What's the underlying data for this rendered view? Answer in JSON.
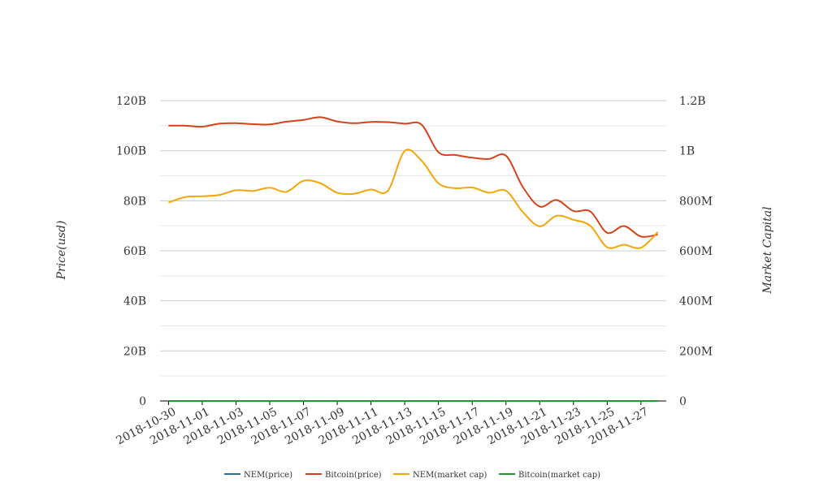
{
  "chart_data": {
    "type": "line",
    "title": "",
    "ylabel_left": "Price(usd)",
    "ylabel_right": "Market Capital",
    "x": [
      "2018-10-30",
      "2018-10-31",
      "2018-11-01",
      "2018-11-02",
      "2018-11-03",
      "2018-11-04",
      "2018-11-05",
      "2018-11-06",
      "2018-11-07",
      "2018-11-08",
      "2018-11-09",
      "2018-11-10",
      "2018-11-11",
      "2018-11-12",
      "2018-11-13",
      "2018-11-14",
      "2018-11-15",
      "2018-11-16",
      "2018-11-17",
      "2018-11-18",
      "2018-11-19",
      "2018-11-20",
      "2018-11-21",
      "2018-11-22",
      "2018-11-23",
      "2018-11-24",
      "2018-11-25",
      "2018-11-26",
      "2018-11-27",
      "2018-11-28"
    ],
    "x_tick_labels": [
      "2018-10-30",
      "2018-11-01",
      "2018-11-03",
      "2018-11-05",
      "2018-11-07",
      "2018-11-09",
      "2018-11-11",
      "2018-11-13",
      "2018-11-15",
      "2018-11-17",
      "2018-11-19",
      "2018-11-21",
      "2018-11-23",
      "2018-11-25",
      "2018-11-27"
    ],
    "y_left": {
      "min": 0,
      "max": 120000000000,
      "ticks": [
        0,
        20000000000,
        40000000000,
        60000000000,
        80000000000,
        100000000000,
        120000000000
      ],
      "tick_labels": [
        "0",
        "20B",
        "40B",
        "60B",
        "80B",
        "100B",
        "120B"
      ]
    },
    "y_right": {
      "min": 0,
      "max": 1200000000,
      "ticks": [
        0,
        200000000,
        400000000,
        600000000,
        800000000,
        1000000000,
        1200000000
      ],
      "tick_labels": [
        "0",
        "200M",
        "400M",
        "600M",
        "800M",
        "1B",
        "1.2B"
      ]
    },
    "grid": true,
    "legend_position": "bottom",
    "series": [
      {
        "name": "NEM(price)",
        "axis": "left",
        "color": "#2e6ca4",
        "values": [
          0.105,
          0.106,
          0.107,
          0.108,
          0.109,
          0.108,
          0.11,
          0.112,
          0.116,
          0.114,
          0.108,
          0.108,
          0.112,
          0.11,
          0.13,
          0.126,
          0.112,
          0.11,
          0.112,
          0.108,
          0.11,
          0.098,
          0.091,
          0.097,
          0.094,
          0.092,
          0.08,
          0.081,
          0.08,
          0.088
        ]
      },
      {
        "name": "Bitcoin(price)",
        "axis": "left",
        "color": "#d4431b",
        "values": [
          110000000000,
          110000000000,
          109600000000,
          110800000000,
          111000000000,
          110600000000,
          110500000000,
          111600000000,
          112300000000,
          113400000000,
          111700000000,
          111000000000,
          111500000000,
          111400000000,
          110800000000,
          110400000000,
          99400000000,
          98300000000,
          97200000000,
          96700000000,
          98000000000,
          85500000000,
          77700000000,
          80300000000,
          75900000000,
          75700000000,
          67200000000,
          69900000000,
          65700000000,
          66500000000
        ]
      },
      {
        "name": "NEM(market cap)",
        "axis": "right",
        "color": "#f5a50a",
        "values": [
          793000000,
          815000000,
          818000000,
          823000000,
          842000000,
          839000000,
          852000000,
          836000000,
          880000000,
          870000000,
          832000000,
          828000000,
          845000000,
          840000000,
          999000000,
          960000000,
          870000000,
          850000000,
          853000000,
          832000000,
          840000000,
          755000000,
          698000000,
          740000000,
          724000000,
          700000000,
          614000000,
          624000000,
          612000000,
          675000000
        ]
      },
      {
        "name": "Bitcoin(market cap)",
        "axis": "right",
        "color": "#1f9a2e",
        "values": [
          0,
          0,
          0,
          0,
          0,
          0,
          0,
          0,
          0,
          0,
          0,
          0,
          0,
          0,
          0,
          0,
          0,
          0,
          0,
          0,
          0,
          0,
          0,
          0,
          0,
          0,
          0,
          0,
          0,
          0
        ]
      }
    ]
  }
}
